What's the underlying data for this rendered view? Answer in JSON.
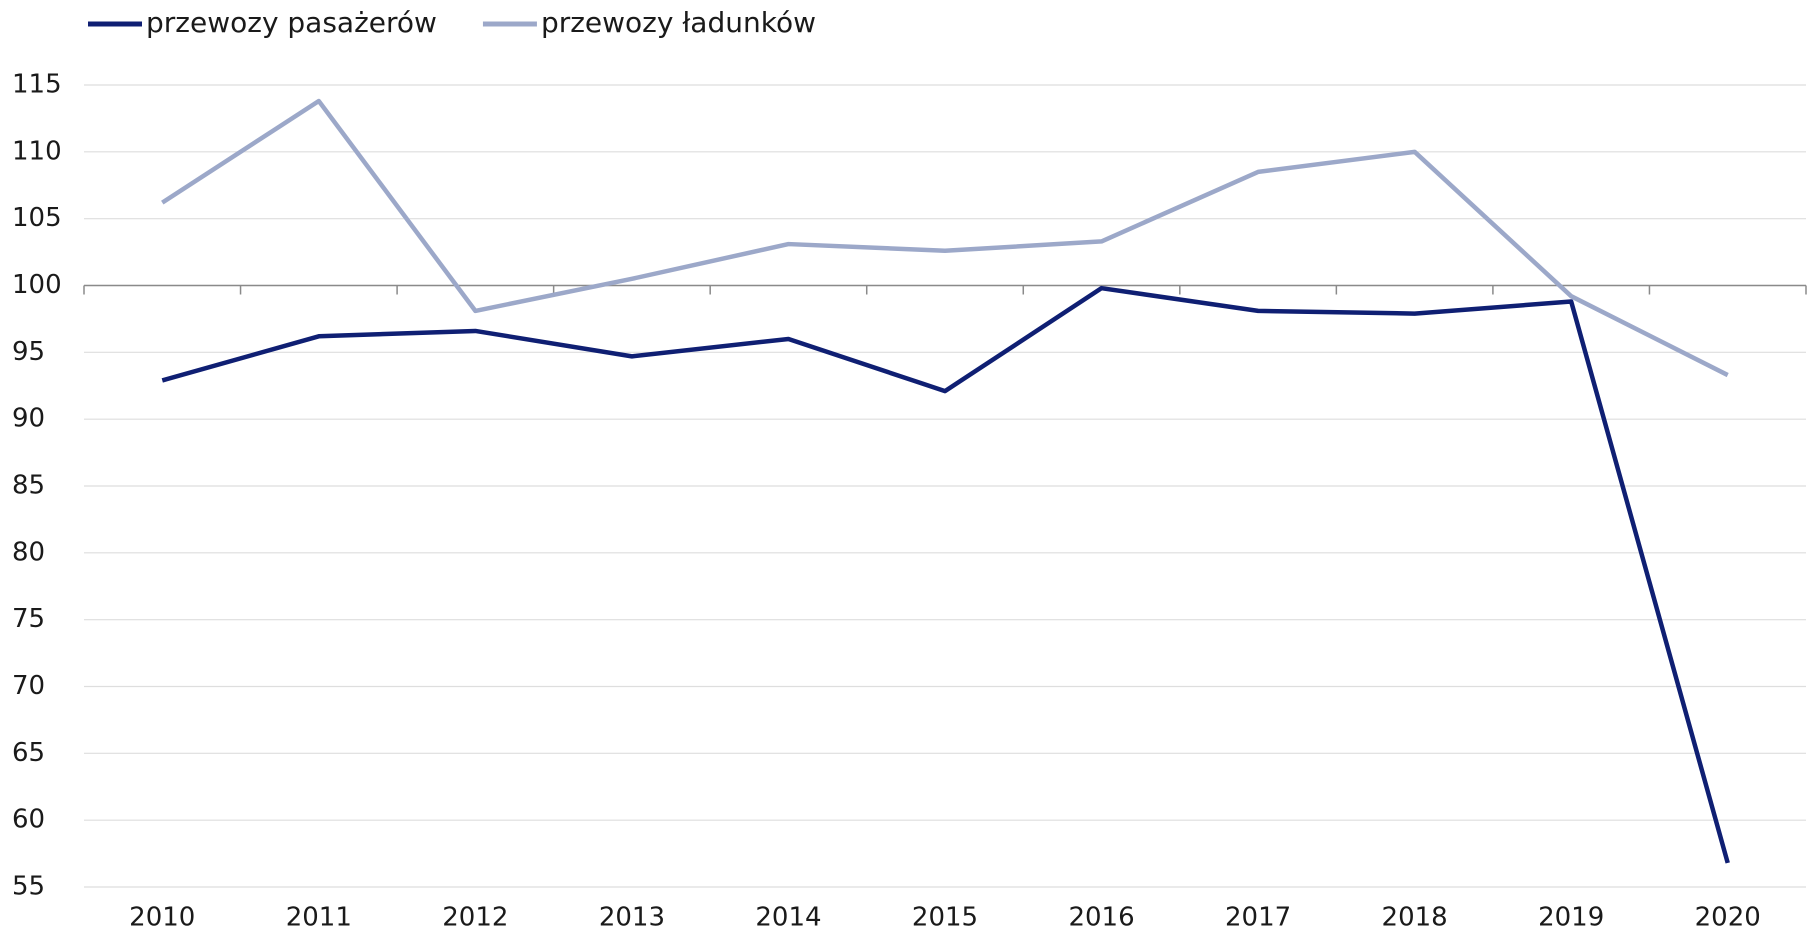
{
  "chart_data": {
    "type": "line",
    "categories": [
      "2010",
      "2011",
      "2012",
      "2013",
      "2014",
      "2015",
      "2016",
      "2017",
      "2018",
      "2019",
      "2020"
    ],
    "series": [
      {
        "name": "przewozy pasażerów",
        "color": "#0f1f73",
        "values": [
          92.9,
          96.2,
          96.6,
          94.7,
          96.0,
          92.1,
          99.8,
          98.1,
          97.9,
          98.8,
          56.8
        ]
      },
      {
        "name": "przewozy ładunków",
        "color": "#9ca8c9",
        "values": [
          106.2,
          113.8,
          98.1,
          100.5,
          103.1,
          102.6,
          103.3,
          108.5,
          110.0,
          99.2,
          93.3
        ]
      }
    ],
    "ylim": [
      55,
      115
    ],
    "yticks": [
      55,
      60,
      65,
      70,
      75,
      80,
      85,
      90,
      95,
      100,
      105,
      110,
      115
    ],
    "grid": true,
    "xaxis_crosses": 100,
    "legend": "top-left"
  }
}
